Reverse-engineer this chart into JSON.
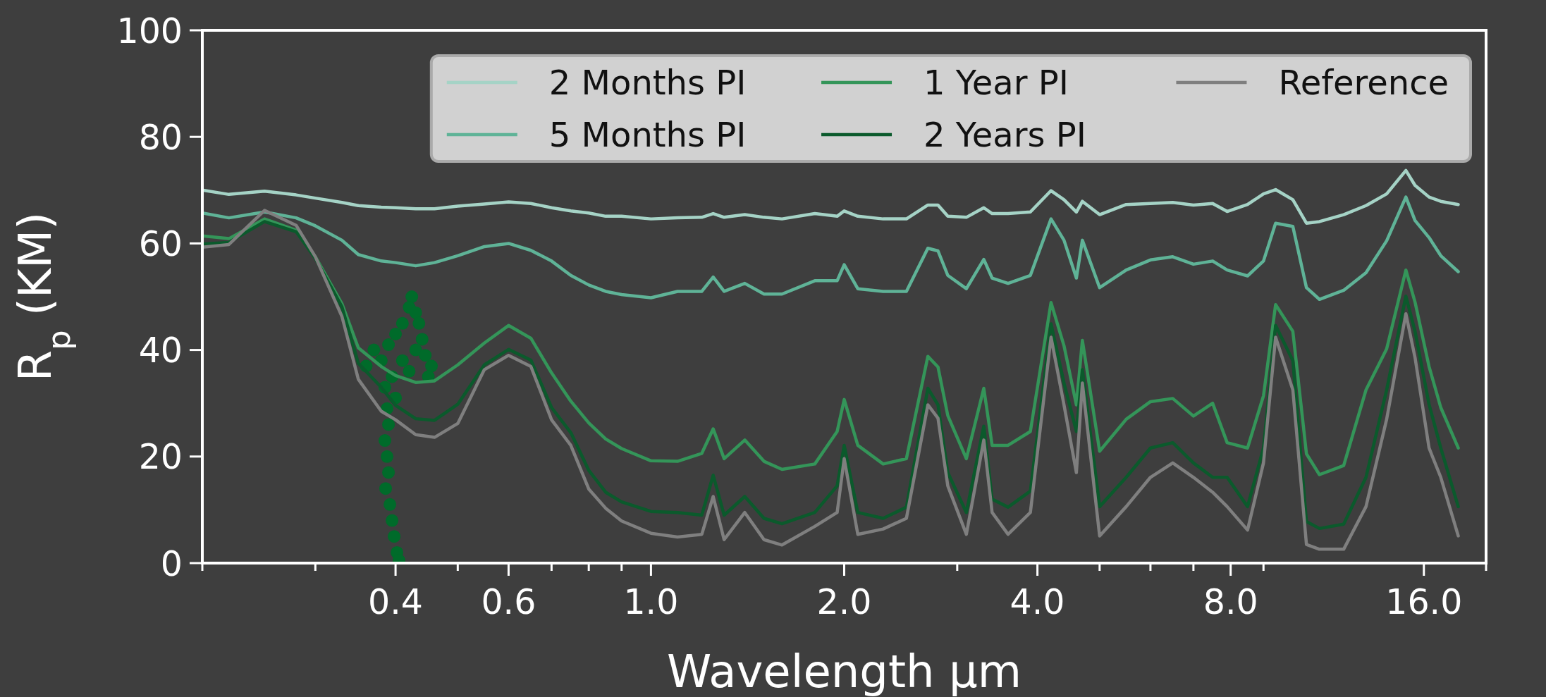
{
  "chart_data": {
    "type": "line",
    "xlabel": "Wavelength μm",
    "ylabel": "R$_{p}$ (KM)",
    "log": "x",
    "legend": "top right",
    "xlim": [
      0.2,
      20
    ],
    "xticks": [
      {
        "value": 0.2,
        "label": null
      },
      {
        "value": 0.3,
        "label": null
      },
      0.4,
      {
        "value": 0.5,
        "label": null
      },
      0.6,
      {
        "value": 0.7,
        "label": null
      },
      {
        "value": 0.8,
        "label": null
      },
      {
        "value": 0.9,
        "label": null
      },
      {
        "value": 1,
        "label": "1.0"
      },
      {
        "value": 2,
        "label": "2.0"
      },
      {
        "value": 3,
        "label": null
      },
      {
        "value": 4,
        "label": "4.0"
      },
      {
        "value": 5,
        "label": null
      },
      {
        "value": 6,
        "label": null
      },
      {
        "value": 7,
        "label": null
      },
      {
        "value": 8,
        "label": "8.0"
      },
      {
        "value": 9,
        "label": null
      },
      {
        "value": 16,
        "label": "16.0"
      },
      {
        "value": 20,
        "label": null
      }
    ],
    "ylim": [
      0,
      100
    ],
    "yticks": [
      0,
      20,
      40,
      60,
      80,
      100
    ],
    "x": [
      0.2,
      0.22,
      0.25,
      0.28,
      0.3,
      0.33,
      0.35,
      0.38,
      0.4,
      0.43,
      0.46,
      0.5,
      0.55,
      0.6,
      0.65,
      0.7,
      0.75,
      0.8,
      0.85,
      0.9,
      1.0,
      1.1,
      1.2,
      1.25,
      1.3,
      1.4,
      1.5,
      1.6,
      1.8,
      1.95,
      2.0,
      2.1,
      2.3,
      2.5,
      2.7,
      2.8,
      2.9,
      3.1,
      3.3,
      3.4,
      3.6,
      3.9,
      4.2,
      4.4,
      4.6,
      4.7,
      5.0,
      5.5,
      6.0,
      6.5,
      7.0,
      7.5,
      7.9,
      8.5,
      9.0,
      9.4,
      10,
      10.5,
      11,
      12,
      13,
      14,
      15,
      15.5,
      16.3,
      17,
      18.1
    ],
    "series": [
      {
        "type": "scatter",
        "color": "#006b2a",
        "marker": "circle",
        "x": [
          0.424,
          0.42,
          0.43,
          0.41,
          0.435,
          0.4,
          0.44,
          0.39,
          0.43,
          0.445,
          0.37,
          0.38,
          0.41,
          0.455,
          0.36,
          0.42,
          0.395,
          0.45,
          0.385,
          0.4,
          0.388,
          0.39,
          0.385,
          0.388,
          0.39,
          0.386,
          0.392,
          0.395,
          0.398,
          0.402,
          0.405
        ],
        "values": [
          50,
          48,
          47,
          45,
          45,
          43,
          42,
          41,
          40,
          39,
          40,
          38,
          38,
          37,
          37,
          36,
          35,
          35,
          33,
          31,
          29,
          26,
          23,
          20,
          17,
          14,
          11,
          8,
          5,
          2,
          0.5
        ]
      },
      {
        "name": "2 Months PI",
        "color": "#a5d3c6",
        "values": [
          70.0,
          69.2,
          69.8,
          69.1,
          68.5,
          67.7,
          67.1,
          66.8,
          66.7,
          66.5,
          66.5,
          67.0,
          67.4,
          67.8,
          67.5,
          66.7,
          66.1,
          65.7,
          65.1,
          65.1,
          64.6,
          64.8,
          64.9,
          65.6,
          64.9,
          65.4,
          64.9,
          64.6,
          65.6,
          65.1,
          66.1,
          65.1,
          64.6,
          64.6,
          67.2,
          67.2,
          65.1,
          64.9,
          66.7,
          65.6,
          65.6,
          65.9,
          69.9,
          68.2,
          65.9,
          67.9,
          65.4,
          67.3,
          67.5,
          67.7,
          67.2,
          67.5,
          66.0,
          67.3,
          69.3,
          70.1,
          68.2,
          63.8,
          64.1,
          65.4,
          67.1,
          69.3,
          73.7,
          70.9,
          68.7,
          67.9,
          67.3
        ]
      },
      {
        "name": "5 Months PI",
        "color": "#5fb397",
        "values": [
          65.7,
          64.8,
          65.9,
          64.8,
          63.3,
          60.6,
          57.9,
          56.7,
          56.4,
          55.8,
          56.4,
          57.7,
          59.4,
          60.0,
          58.7,
          56.7,
          54.0,
          52.2,
          51.0,
          50.4,
          49.8,
          51.0,
          51.0,
          53.7,
          51.0,
          52.5,
          50.5,
          50.5,
          53.0,
          53.0,
          56.0,
          51.5,
          51.0,
          51.0,
          59.1,
          58.6,
          54.0,
          51.5,
          57.0,
          53.5,
          52.5,
          54.0,
          64.6,
          60.6,
          53.5,
          60.6,
          51.7,
          55.0,
          56.9,
          57.5,
          56.1,
          56.7,
          55.0,
          53.9,
          56.7,
          63.8,
          63.2,
          51.7,
          49.5,
          51.2,
          54.5,
          60.5,
          68.7,
          64.3,
          61.1,
          57.7,
          54.7
        ]
      },
      {
        "name": "1 Year PI",
        "color": "#349559",
        "values": [
          61.4,
          60.9,
          64.6,
          62.5,
          57.5,
          48.7,
          40.4,
          36.9,
          35.2,
          33.9,
          34.2,
          37.2,
          41.3,
          44.6,
          42.2,
          35.7,
          30.4,
          26.3,
          23.3,
          21.5,
          19.2,
          19.1,
          20.6,
          25.2,
          19.6,
          23.1,
          19.1,
          17.6,
          18.6,
          24.7,
          30.7,
          22.1,
          18.6,
          19.6,
          38.8,
          36.8,
          27.7,
          19.6,
          32.8,
          22.1,
          22.1,
          24.7,
          48.9,
          40.8,
          29.7,
          41.8,
          21.0,
          27.0,
          30.3,
          30.9,
          27.6,
          30.0,
          22.6,
          21.6,
          31.4,
          48.5,
          43.5,
          20.5,
          16.6,
          18.3,
          32.5,
          40.2,
          55.0,
          49.0,
          36.9,
          29.2,
          21.6
        ]
      },
      {
        "name": "2 Years PI",
        "color": "#0b5a2c",
        "values": [
          59.9,
          60.2,
          64.1,
          62.2,
          57.2,
          48.1,
          37.5,
          33.0,
          29.6,
          27.1,
          26.8,
          29.8,
          37.2,
          40.1,
          38.1,
          29.2,
          24.5,
          17.4,
          13.3,
          11.5,
          9.7,
          9.5,
          9.0,
          16.5,
          9.0,
          12.5,
          8.4,
          7.4,
          9.5,
          14.5,
          22.1,
          9.5,
          8.4,
          10.5,
          32.8,
          29.7,
          17.0,
          9.5,
          25.7,
          12.0,
          10.5,
          13.5,
          44.9,
          33.8,
          24.7,
          36.3,
          10.6,
          16.1,
          21.6,
          22.6,
          18.8,
          16.1,
          16.1,
          10.6,
          21.6,
          44.6,
          38.0,
          7.8,
          6.5,
          7.3,
          16.1,
          32.5,
          50.1,
          43.5,
          29.8,
          21.6,
          10.6
        ]
      },
      {
        "name": "Reference",
        "color": "#7f7f7f",
        "values": [
          59.3,
          59.8,
          66.2,
          63.4,
          57.5,
          46.3,
          34.5,
          28.5,
          26.9,
          24.1,
          23.6,
          26.2,
          36.3,
          39.0,
          36.9,
          26.9,
          22.1,
          13.9,
          10.3,
          7.9,
          5.6,
          4.9,
          5.4,
          12.5,
          4.4,
          9.5,
          4.4,
          3.4,
          6.9,
          9.5,
          19.6,
          5.4,
          6.4,
          8.4,
          29.7,
          27.2,
          14.5,
          5.4,
          23.1,
          9.5,
          5.4,
          9.5,
          42.4,
          29.7,
          17.0,
          33.8,
          5.1,
          10.6,
          16.1,
          18.8,
          16.1,
          13.3,
          10.6,
          6.2,
          18.8,
          42.4,
          32.5,
          3.5,
          2.6,
          2.6,
          10.6,
          27.0,
          46.8,
          38.6,
          21.6,
          16.1,
          5.1
        ]
      }
    ]
  }
}
